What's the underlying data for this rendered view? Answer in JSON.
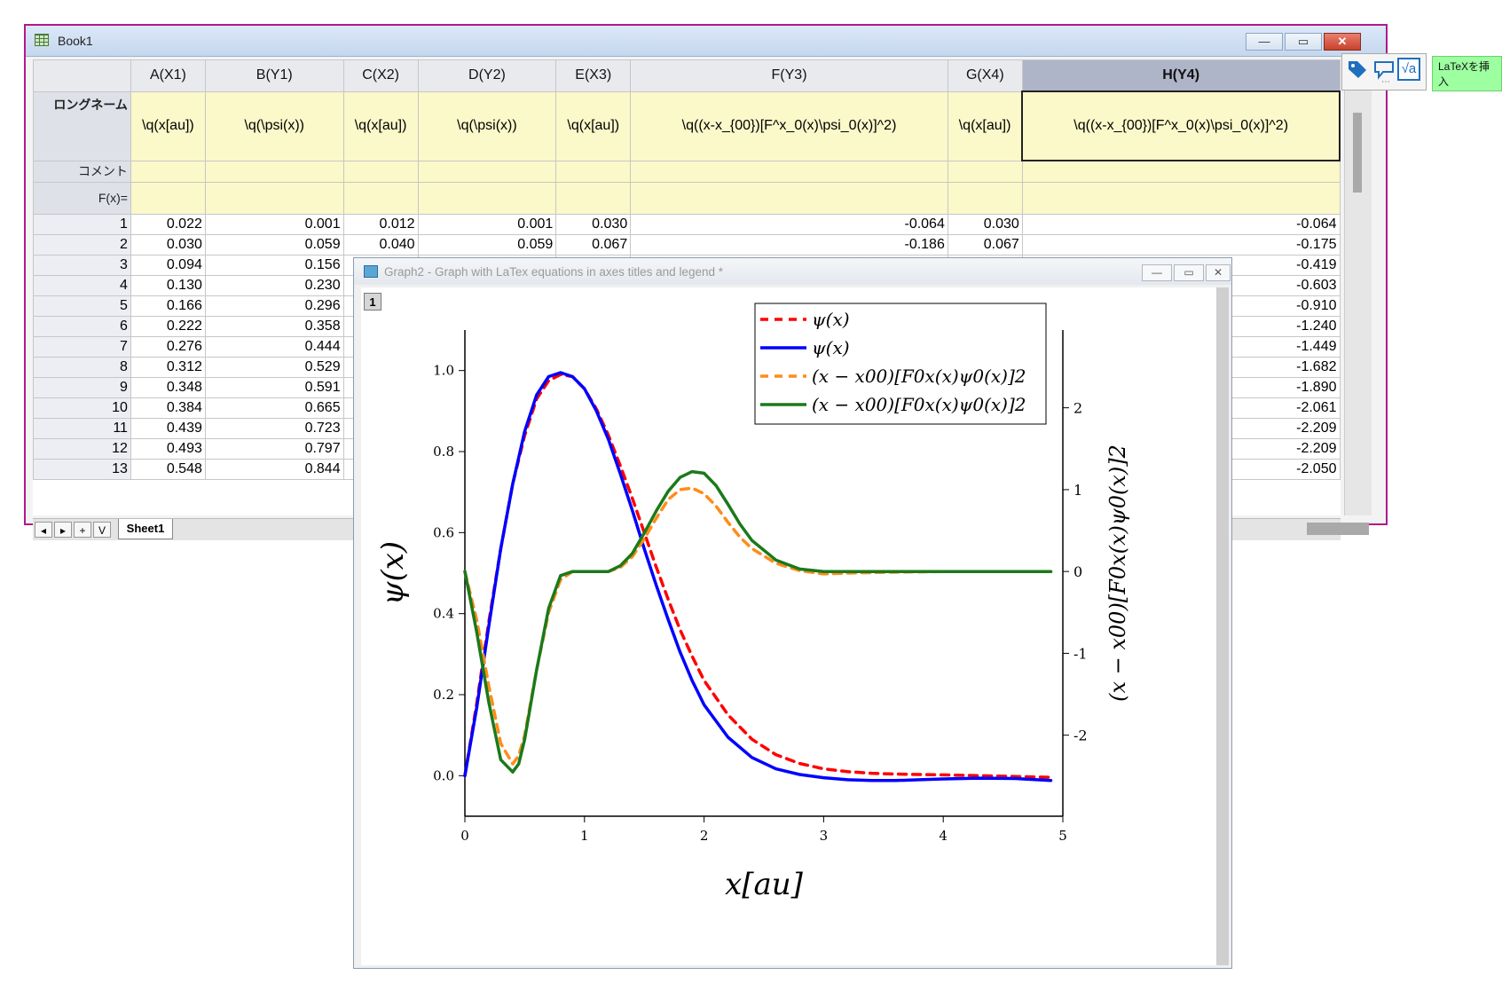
{
  "workbook": {
    "title": "Book1",
    "columns": [
      "A(X1)",
      "B(Y1)",
      "C(X2)",
      "D(Y2)",
      "E(X3)",
      "F(Y3)",
      "G(X4)",
      "H(Y4)"
    ],
    "row_labels": {
      "longname": "ロングネーム",
      "comment": "コメント",
      "fx": "F(x)="
    },
    "longnames": [
      "\\q(x[au])",
      "\\q(\\psi(x))",
      "\\q(x[au])",
      "\\q(\\psi(x))",
      "\\q(x[au])",
      "\\q((x-x_{00})[F^x_0(x)\\psi_0(x)]^2)",
      "\\q(x[au])",
      "\\q((x-x_{00})[F^x_0(x)\\psi_0(x)]^2)"
    ],
    "rows": [
      [
        "1",
        "0.022",
        "0.001",
        "0.012",
        "0.001",
        "0.030",
        "-0.064",
        "0.030",
        "-0.064"
      ],
      [
        "2",
        "0.030",
        "0.059",
        "0.040",
        "0.059",
        "0.067",
        "-0.186",
        "0.067",
        "-0.175"
      ],
      [
        "3",
        "0.094",
        "0.156",
        "",
        "",
        "",
        "",
        "",
        "-0.419"
      ],
      [
        "4",
        "0.130",
        "0.230",
        "",
        "",
        "",
        "",
        "",
        "-0.603"
      ],
      [
        "5",
        "0.166",
        "0.296",
        "",
        "",
        "",
        "",
        "",
        "-0.910"
      ],
      [
        "6",
        "0.222",
        "0.358",
        "",
        "",
        "",
        "",
        "",
        "-1.240"
      ],
      [
        "7",
        "0.276",
        "0.444",
        "",
        "",
        "",
        "",
        "",
        "-1.449"
      ],
      [
        "8",
        "0.312",
        "0.529",
        "",
        "",
        "",
        "",
        "",
        "-1.682"
      ],
      [
        "9",
        "0.348",
        "0.591",
        "",
        "",
        "",
        "",
        "",
        "-1.890"
      ],
      [
        "10",
        "0.384",
        "0.665",
        "",
        "",
        "",
        "",
        "",
        "-2.061"
      ],
      [
        "11",
        "0.439",
        "0.723",
        "",
        "",
        "",
        "",
        "",
        "-2.209"
      ],
      [
        "12",
        "0.493",
        "0.797",
        "",
        "",
        "",
        "",
        "",
        "-2.209"
      ],
      [
        "13",
        "0.548",
        "0.844",
        "",
        "",
        "",
        "",
        "",
        "-2.050"
      ]
    ],
    "sheet_tab": "Sheet1",
    "nav_buttons": [
      "◂",
      "▸",
      "+",
      "V"
    ],
    "window_buttons": [
      "—",
      "▭",
      "✕"
    ]
  },
  "minitoolbar": {
    "icons": [
      "tag-icon",
      "callout-icon",
      "sqrt-latex-icon"
    ],
    "sqrt_glyph": "√a",
    "tooltip": "LaTeXを挿入",
    "more": "⋯"
  },
  "graph_window": {
    "title": "Graph2 - Graph with LaTex equations in axes titles and legend *",
    "layer": "1",
    "window_buttons": [
      "—",
      "▭",
      "✕"
    ]
  },
  "chart_data": {
    "type": "line",
    "xlabel": "x[au]",
    "ylabel_left": "ψ(x)",
    "ylabel_right": "(x − x00)[F0x(x)ψ0(x)]2",
    "xlim": [
      0,
      5
    ],
    "ylim_left": [
      -0.1,
      1.1
    ],
    "ylim_right": [
      -2.99,
      2.95
    ],
    "xticks": [
      "0",
      "1",
      "2",
      "3",
      "4",
      "5"
    ],
    "yticks_left": [
      "0.0",
      "0.2",
      "0.4",
      "0.6",
      "0.8",
      "1.0"
    ],
    "yticks_right": [
      "-2",
      "-1",
      "0",
      "1",
      "2"
    ],
    "legend_position": "top-right",
    "series": [
      {
        "name": "ψ(x)",
        "axis": "left",
        "color": "#ff0000",
        "dash": "dashed",
        "x": [
          0,
          0.1,
          0.2,
          0.3,
          0.4,
          0.5,
          0.6,
          0.7,
          0.8,
          0.9,
          1.0,
          1.1,
          1.2,
          1.3,
          1.4,
          1.5,
          1.6,
          1.7,
          1.8,
          1.9,
          2.0,
          2.2,
          2.4,
          2.6,
          2.8,
          3.0,
          3.2,
          3.4,
          3.6,
          3.8,
          4.0,
          4.3,
          4.6,
          4.9
        ],
        "y": [
          0.0,
          0.18,
          0.38,
          0.56,
          0.72,
          0.84,
          0.93,
          0.975,
          0.99,
          0.985,
          0.955,
          0.905,
          0.84,
          0.765,
          0.685,
          0.6,
          0.515,
          0.435,
          0.36,
          0.295,
          0.235,
          0.15,
          0.09,
          0.052,
          0.03,
          0.017,
          0.01,
          0.006,
          0.004,
          0.003,
          0.002,
          0.0,
          -0.002,
          -0.004
        ]
      },
      {
        "name": "ψ(x)",
        "axis": "left",
        "color": "#0000ff",
        "dash": "solid",
        "x": [
          0,
          0.1,
          0.2,
          0.3,
          0.4,
          0.5,
          0.6,
          0.7,
          0.8,
          0.9,
          1.0,
          1.1,
          1.2,
          1.3,
          1.4,
          1.5,
          1.6,
          1.7,
          1.8,
          1.9,
          2.0,
          2.2,
          2.4,
          2.6,
          2.8,
          3.0,
          3.2,
          3.4,
          3.6,
          3.8,
          4.0,
          4.3,
          4.6,
          4.9
        ],
        "y": [
          0.0,
          0.17,
          0.37,
          0.56,
          0.72,
          0.85,
          0.94,
          0.985,
          0.995,
          0.985,
          0.955,
          0.9,
          0.83,
          0.745,
          0.655,
          0.56,
          0.47,
          0.385,
          0.305,
          0.235,
          0.175,
          0.095,
          0.045,
          0.017,
          0.003,
          -0.005,
          -0.01,
          -0.012,
          -0.012,
          -0.01,
          -0.008,
          -0.006,
          -0.007,
          -0.012
        ]
      },
      {
        "name": "(x − x00)[F0x(x)ψ0(x)]2",
        "axis": "right",
        "color": "#ff8c1a",
        "dash": "dashed",
        "x": [
          0,
          0.1,
          0.2,
          0.3,
          0.4,
          0.45,
          0.5,
          0.6,
          0.7,
          0.8,
          0.9,
          1.0,
          1.1,
          1.2,
          1.3,
          1.4,
          1.5,
          1.6,
          1.7,
          1.8,
          1.9,
          2.0,
          2.1,
          2.2,
          2.3,
          2.4,
          2.6,
          2.8,
          3.0,
          3.2,
          3.5,
          4.0,
          4.5,
          4.9
        ],
        "y": [
          0.0,
          -0.6,
          -1.4,
          -2.1,
          -2.35,
          -2.25,
          -2.0,
          -1.2,
          -0.5,
          -0.1,
          0.0,
          0.0,
          0.0,
          0.0,
          0.05,
          0.18,
          0.4,
          0.65,
          0.88,
          1.0,
          1.02,
          0.95,
          0.8,
          0.6,
          0.42,
          0.28,
          0.1,
          0.01,
          -0.03,
          -0.02,
          -0.01,
          0.0,
          0.0,
          0.0
        ]
      },
      {
        "name": "(x − x00)[F0x(x)ψ0(x)]2",
        "axis": "right",
        "color": "#1a7a1a",
        "dash": "solid",
        "x": [
          0,
          0.1,
          0.2,
          0.3,
          0.4,
          0.45,
          0.5,
          0.6,
          0.7,
          0.8,
          0.9,
          1.0,
          1.1,
          1.2,
          1.3,
          1.4,
          1.5,
          1.6,
          1.7,
          1.8,
          1.9,
          2.0,
          2.1,
          2.2,
          2.3,
          2.4,
          2.6,
          2.8,
          3.0,
          3.2,
          3.5,
          4.0,
          4.5,
          4.9
        ],
        "y": [
          0.0,
          -0.75,
          -1.6,
          -2.3,
          -2.45,
          -2.35,
          -2.05,
          -1.2,
          -0.45,
          -0.05,
          0.0,
          0.0,
          0.0,
          0.0,
          0.07,
          0.22,
          0.47,
          0.74,
          0.98,
          1.15,
          1.22,
          1.2,
          1.05,
          0.82,
          0.58,
          0.38,
          0.14,
          0.03,
          0.0,
          0.0,
          0.0,
          0.0,
          0.0,
          0.0
        ]
      }
    ]
  }
}
